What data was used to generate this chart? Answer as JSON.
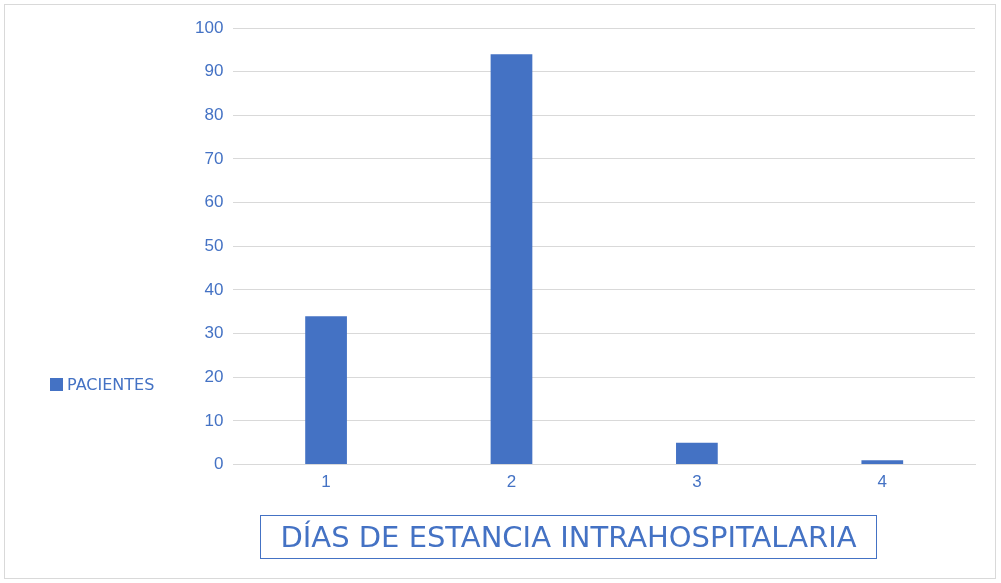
{
  "chart_data": {
    "type": "bar",
    "xlabel": "DÍAS DE ESTANCIA INTRAHOSPITALARIA",
    "categories": [
      "1",
      "2",
      "3",
      "4"
    ],
    "series": [
      {
        "name": "PACIENTES",
        "color": "#4472c4",
        "values": [
          34,
          94,
          5,
          1
        ]
      }
    ],
    "ylim": [
      0,
      100
    ],
    "yticks": [
      0,
      10,
      20,
      30,
      40,
      50,
      60,
      70,
      80,
      90,
      100
    ],
    "grid": "y",
    "legend": "left"
  }
}
